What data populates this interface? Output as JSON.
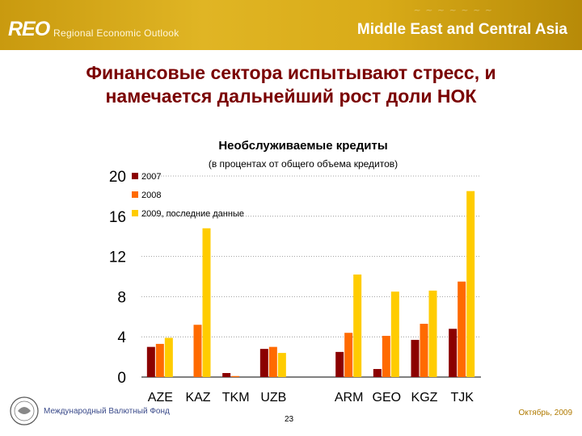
{
  "header": {
    "brand": "REO",
    "brand_subtitle": "Regional Economic Outlook",
    "region": "Middle East and Central Asia"
  },
  "slide": {
    "title_line1": "Финансовые сектора испытывают стресс, и",
    "title_line2": "намечается дальнейший рост доли НОК"
  },
  "footer": {
    "organization": "Международный Валютный Фонд",
    "page": "23",
    "date": "Октябрь, 2009"
  },
  "colors": {
    "s2007": "#8b0000",
    "s2008": "#ff6a00",
    "s2009": "#ffcc00",
    "title": "#7a0000"
  },
  "chart_data": {
    "type": "bar",
    "title": "Необслуживаемые кредиты",
    "subtitle": "(в процентах от общего объема кредитов)",
    "categories": [
      "AZE",
      "KAZ",
      "TKM",
      "UZB",
      "",
      "ARM",
      "GEO",
      "KGZ",
      "TJK"
    ],
    "series": [
      {
        "name": "2007",
        "color": "#8b0000",
        "values": [
          3.0,
          null,
          0.4,
          2.8,
          null,
          2.5,
          0.8,
          3.7,
          4.8
        ]
      },
      {
        "name": "2008",
        "color": "#ff6a00",
        "values": [
          3.3,
          5.2,
          0.1,
          3.0,
          null,
          4.4,
          4.1,
          5.3,
          9.5
        ]
      },
      {
        "name": "2009, последние данные",
        "color": "#ffcc00",
        "values": [
          3.9,
          14.8,
          null,
          2.4,
          null,
          10.2,
          8.5,
          8.6,
          18.5
        ]
      }
    ],
    "ylim": [
      0,
      20
    ],
    "yticks": [
      0,
      4,
      8,
      12,
      16,
      20
    ],
    "grid": true,
    "legend": "top-left"
  }
}
